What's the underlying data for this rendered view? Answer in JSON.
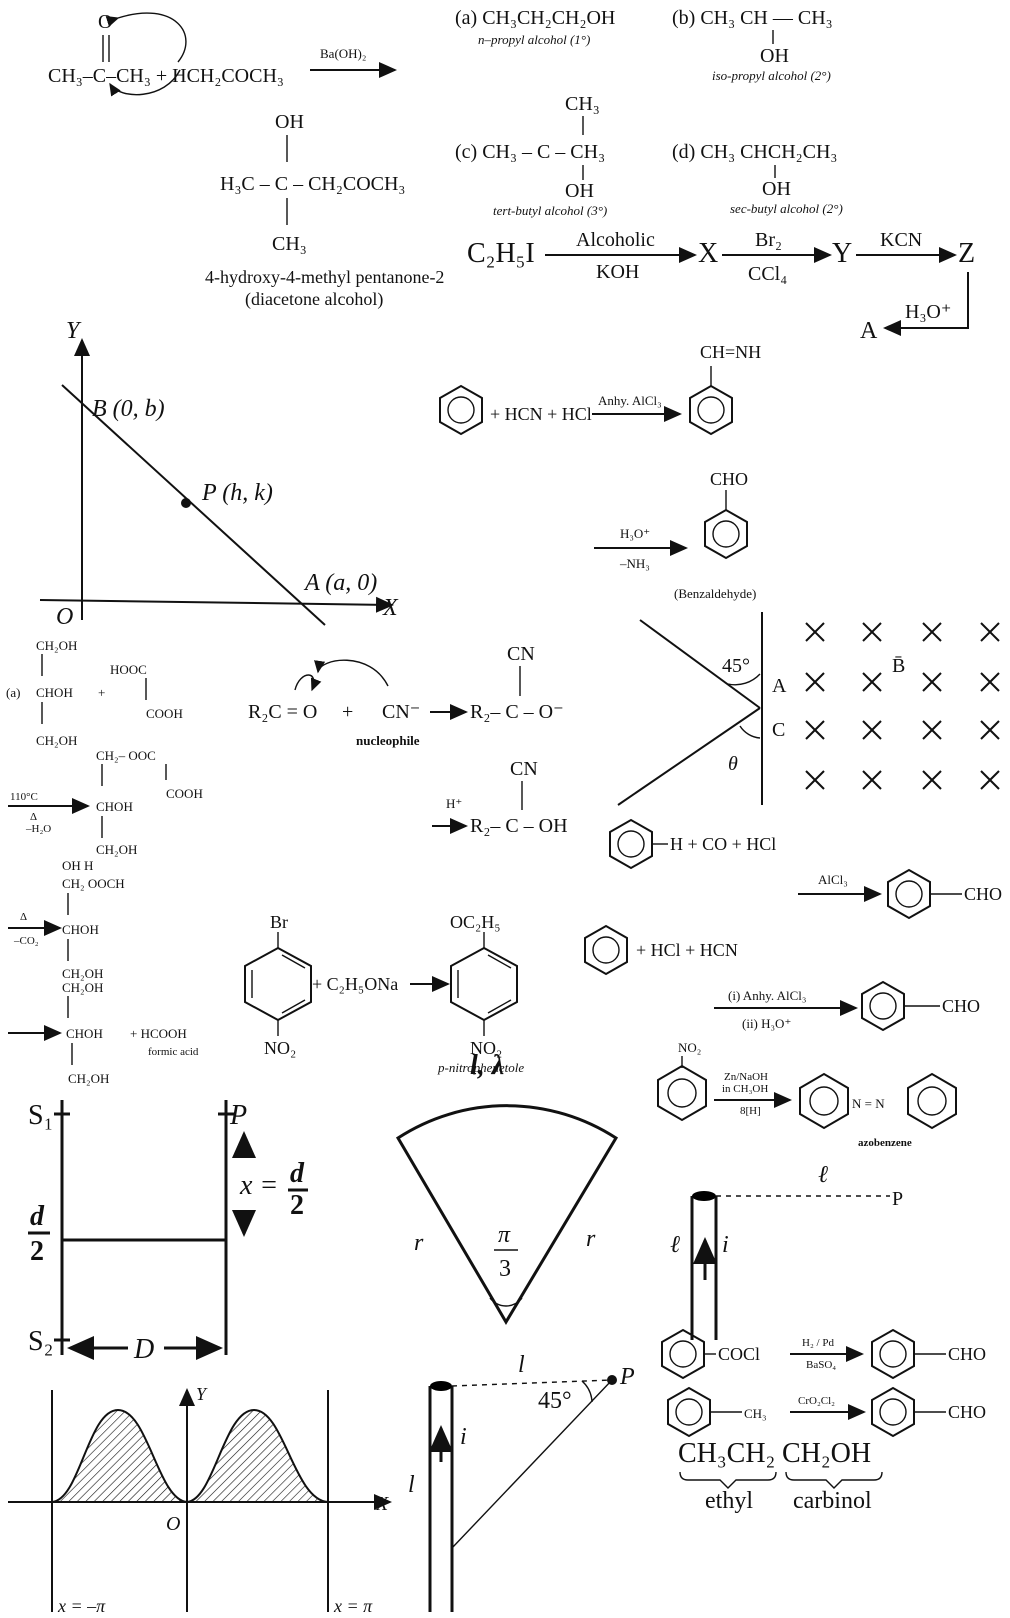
{
  "aldol": {
    "o_top": "O",
    "left": "CH₃–C–CH₃ + HCH₂COCH₃",
    "reagent": "Ba(OH)₂",
    "oh": "OH",
    "product": "H₃C – C – CH₂COCH₃",
    "ch3": "CH₃",
    "name1": "4-hydroxy-4-methyl pentanone-2",
    "name2": "(diacetone alcohol)"
  },
  "alcohols": {
    "a": "(a) CH₃CH₂CH₂OH",
    "a_name": "n–propyl alcohol (1°)",
    "b": "(b)  CH₃ CH — CH₃",
    "b_oh": "OH",
    "b_name": "iso-propyl alcohol (2°)",
    "c_top": "CH₃",
    "c": "(c)  CH₃ – C – CH₃",
    "c_oh": "OH",
    "c_name": "tert-butyl alcohol (3°)",
    "d": "(d)  CH₃ CHCH₂CH₃",
    "d_oh": "OH",
    "d_name": "sec-butyl alcohol (2°)"
  },
  "seq": {
    "start": "C₂H₅I",
    "r1_top": "Alcoholic",
    "r1_bot": "KOH",
    "x": "X",
    "r2_top": "Br₂",
    "r2_bot": "CCl₄",
    "y": "Y",
    "r3": "KCN",
    "z": "Z",
    "r4": "H₃O⁺",
    "a": "A"
  },
  "graph1": {
    "y": "Y",
    "x": "X",
    "o": "O",
    "b": "B (0, b)",
    "p": "P (h, k)",
    "a": "A (a, 0)"
  },
  "gattermann": {
    "ch_nh": "CH=NH",
    "reagents": "+ HCN + HCl",
    "catalyst": "Anhy. AlCl₃",
    "cho": "CHO",
    "hyd_top": "H₃O⁺",
    "hyd_bot": "–NH₃",
    "name": "(Benzaldehyde)"
  },
  "glycerol": {
    "a": "(a)",
    "g1": "CH₂OH",
    "g2": "CHOH",
    "g3": "CH₂OH",
    "plus": "+",
    "ox1": "HOOC",
    "ox2": "COOH",
    "e1": "CH₂– OOC",
    "e2": "CHOH",
    "e3": "COOH",
    "e4": "CH₂OH",
    "cond1": "110°C",
    "cond2": "Δ",
    "cond3": "–H₂O",
    "f1": "OH  H",
    "f2": "CH₂ OOCH",
    "cond4": "Δ",
    "cond5": "–CO₂",
    "f3": "CHOH",
    "f4": "CH₂OH",
    "f5": "CH₂OH",
    "f6": "CHOH",
    "plus2": "+ HCOOH",
    "formic": "formic acid",
    "f7": "CH₂OH"
  },
  "cyano": {
    "r2c": "R₂C = O",
    "plus": "+",
    "cn": "CN⁻",
    "nuc": "nucleophile",
    "cn_top": "CN",
    "p1": "R₂– C – O⁻",
    "h": "H⁺",
    "cn_top2": "CN",
    "p2": "R₂– C – OH"
  },
  "magnetic": {
    "angle": "45°",
    "theta": "θ",
    "a": "A",
    "c": "C",
    "b": "B̄"
  },
  "gatt_koch": {
    "left": "H + CO + HCl",
    "cat": "AlCl₃",
    "cho": "CHO"
  },
  "gatt2": {
    "plus": "+ HCl + HCN",
    "r1": "(i) Anhy. AlCl₃",
    "r2": "(ii) H₃O⁺",
    "cho": "CHO"
  },
  "ether": {
    "br": "Br",
    "no2": "NO₂",
    "plus": "+ C₂H₅ONa",
    "oc2h5": "OC₂H₅",
    "no2b": "NO₂",
    "name": "p-nitrophenetole"
  },
  "azo": {
    "no2": "NO₂",
    "r1": "Zn/NaOH",
    "r2": "in CH₃OH",
    "r3": "8[H]",
    "nn": "N = N",
    "name": "azobenzene"
  },
  "ydse": {
    "s1": "S₁",
    "s2": "S₂",
    "p": "P",
    "x": "x =",
    "d_num": "d",
    "d_den": "2",
    "ld_num": "d",
    "ld_den": "2",
    "D": "D"
  },
  "sector": {
    "top": "l, λ",
    "r1": "r",
    "r2": "r",
    "ang_num": "π",
    "ang_den": "3"
  },
  "wire1": {
    "l_top": "ℓ",
    "p": "P",
    "l_side": "ℓ",
    "i": "i"
  },
  "rosenmund": {
    "cocl": "COCl",
    "r1": "H₂ / Pd",
    "r2": "BaSO₄",
    "cho": "CHO"
  },
  "etard": {
    "ch3": "CH₃",
    "r1": "CrO₂Cl₂",
    "cho": "CHO"
  },
  "carbinol": {
    "a": "CH₃CH₂",
    "b": "CH₂OH",
    "ethyl": "ethyl",
    "carb": "carbinol"
  },
  "graph2": {
    "y": "Y",
    "x": "X",
    "o": "O",
    "xl": "x = –π",
    "xr": "x = π"
  },
  "wire2": {
    "l_top": "l",
    "angle": "45°",
    "p": "P",
    "l_side": "l",
    "i": "i"
  }
}
